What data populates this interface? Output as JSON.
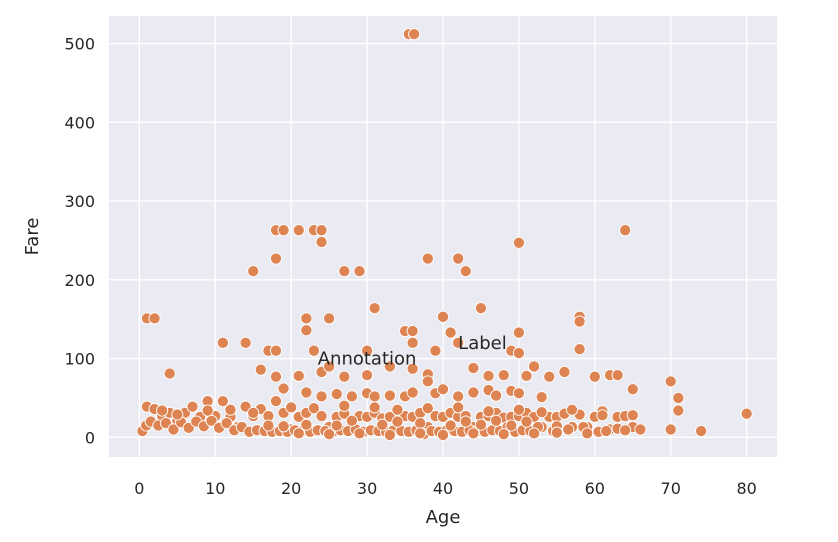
{
  "chart_data": {
    "type": "scatter",
    "title": "",
    "xlabel": "Age",
    "ylabel": "Fare",
    "xlim": [
      -4,
      84
    ],
    "ylim": [
      -25,
      535
    ],
    "xticks": [
      0,
      10,
      20,
      30,
      40,
      50,
      60,
      70,
      80
    ],
    "yticks": [
      0,
      100,
      200,
      300,
      400,
      500
    ],
    "grid": true,
    "background": "#eaeaf2",
    "point_color": "#dd8452",
    "annotations": [
      {
        "text": "Annotation",
        "x": 30,
        "y": 100
      },
      {
        "text": "Label",
        "x": 42,
        "y": 120
      }
    ],
    "points": [
      [
        35.5,
        512
      ],
      [
        36.2,
        512
      ],
      [
        18,
        263
      ],
      [
        19,
        263
      ],
      [
        21,
        263
      ],
      [
        23,
        263
      ],
      [
        24,
        263
      ],
      [
        64,
        263
      ],
      [
        24,
        248
      ],
      [
        50,
        247
      ],
      [
        18,
        227
      ],
      [
        38,
        227
      ],
      [
        42,
        227
      ],
      [
        15,
        211
      ],
      [
        27,
        211
      ],
      [
        29,
        211
      ],
      [
        43,
        211
      ],
      [
        31,
        164
      ],
      [
        45,
        164
      ],
      [
        1,
        151
      ],
      [
        2,
        151
      ],
      [
        22,
        151
      ],
      [
        25,
        151
      ],
      [
        40,
        153
      ],
      [
        58,
        153
      ],
      [
        58,
        147
      ],
      [
        22,
        136
      ],
      [
        35,
        135
      ],
      [
        36,
        135
      ],
      [
        41,
        133
      ],
      [
        50,
        133
      ],
      [
        11,
        120
      ],
      [
        14,
        120
      ],
      [
        36,
        120
      ],
      [
        42,
        120
      ],
      [
        17,
        110
      ],
      [
        18,
        110
      ],
      [
        23,
        110
      ],
      [
        30,
        110
      ],
      [
        39,
        110
      ],
      [
        49,
        110
      ],
      [
        50,
        107
      ],
      [
        58,
        112
      ],
      [
        4,
        81
      ],
      [
        24,
        83
      ],
      [
        16,
        86
      ],
      [
        25,
        90
      ],
      [
        27,
        77
      ],
      [
        30,
        79
      ],
      [
        33,
        90
      ],
      [
        36,
        87
      ],
      [
        38,
        80
      ],
      [
        44,
        88
      ],
      [
        46,
        78
      ],
      [
        48,
        79
      ],
      [
        51,
        78
      ],
      [
        52,
        90
      ],
      [
        56,
        83
      ],
      [
        60,
        77
      ],
      [
        62,
        79
      ],
      [
        63,
        79
      ],
      [
        65,
        61
      ],
      [
        70,
        71
      ],
      [
        71,
        50
      ],
      [
        71,
        34
      ],
      [
        18,
        77
      ],
      [
        19,
        62
      ],
      [
        21,
        78
      ],
      [
        22,
        57
      ],
      [
        24,
        52
      ],
      [
        26,
        55
      ],
      [
        28,
        52
      ],
      [
        30,
        56
      ],
      [
        31,
        52
      ],
      [
        33,
        53
      ],
      [
        35,
        52
      ],
      [
        36,
        57
      ],
      [
        38,
        71
      ],
      [
        39,
        56
      ],
      [
        40,
        61
      ],
      [
        42,
        52
      ],
      [
        44,
        57
      ],
      [
        46,
        60
      ],
      [
        47,
        53
      ],
      [
        49,
        59
      ],
      [
        50,
        56
      ],
      [
        53,
        51
      ],
      [
        54,
        77
      ],
      [
        58,
        29
      ],
      [
        61,
        33
      ],
      [
        1,
        39
      ],
      [
        2,
        36
      ],
      [
        3,
        27
      ],
      [
        4,
        31
      ],
      [
        5,
        21
      ],
      [
        6,
        31
      ],
      [
        7,
        39
      ],
      [
        8,
        26
      ],
      [
        9,
        46
      ],
      [
        10,
        27
      ],
      [
        11,
        46
      ],
      [
        12,
        26
      ],
      [
        13,
        13
      ],
      [
        14,
        39
      ],
      [
        15,
        27
      ],
      [
        16,
        36
      ],
      [
        17,
        27
      ],
      [
        18,
        46
      ],
      [
        19,
        31
      ],
      [
        20,
        10
      ],
      [
        21,
        26
      ],
      [
        22,
        31
      ],
      [
        23,
        8
      ],
      [
        24,
        27
      ],
      [
        25,
        13
      ],
      [
        26,
        26
      ],
      [
        27,
        30
      ],
      [
        28,
        16
      ],
      [
        29,
        27
      ],
      [
        30,
        26
      ],
      [
        31,
        31
      ],
      [
        32,
        24
      ],
      [
        33,
        26
      ],
      [
        34,
        13
      ],
      [
        35,
        27
      ],
      [
        36,
        26
      ],
      [
        37,
        31
      ],
      [
        38,
        13
      ],
      [
        39,
        27
      ],
      [
        40,
        26
      ],
      [
        41,
        31
      ],
      [
        42,
        26
      ],
      [
        43,
        27
      ],
      [
        44,
        13
      ],
      [
        45,
        26
      ],
      [
        46,
        27
      ],
      [
        47,
        31
      ],
      [
        48,
        25
      ],
      [
        49,
        26
      ],
      [
        50,
        27
      ],
      [
        51,
        31
      ],
      [
        52,
        26
      ],
      [
        53,
        13
      ],
      [
        54,
        26
      ],
      [
        55,
        26
      ],
      [
        56,
        30
      ],
      [
        57,
        13
      ],
      [
        59,
        13
      ],
      [
        60,
        26
      ],
      [
        62,
        10
      ],
      [
        63,
        26
      ],
      [
        64,
        27
      ],
      [
        65,
        13
      ],
      [
        66,
        10
      ],
      [
        0.4,
        8
      ],
      [
        0.9,
        15
      ],
      [
        1.5,
        20
      ],
      [
        2.5,
        15
      ],
      [
        3.5,
        18
      ],
      [
        4.5,
        10
      ],
      [
        5.5,
        19
      ],
      [
        6.5,
        12
      ],
      [
        7.5,
        20
      ],
      [
        8.5,
        14
      ],
      [
        9.5,
        21
      ],
      [
        10.5,
        12
      ],
      [
        11.5,
        18
      ],
      [
        12.5,
        9
      ],
      [
        13.5,
        13
      ],
      [
        14.5,
        7
      ],
      [
        15.5,
        9
      ],
      [
        16.5,
        8
      ],
      [
        17.5,
        7
      ],
      [
        18.5,
        8
      ],
      [
        19.5,
        7
      ],
      [
        20.5,
        9
      ],
      [
        21.5,
        8
      ],
      [
        22.5,
        7
      ],
      [
        23.5,
        9
      ],
      [
        24.5,
        8
      ],
      [
        25.5,
        7
      ],
      [
        26.5,
        9
      ],
      [
        27.5,
        8
      ],
      [
        28.5,
        10
      ],
      [
        29.5,
        7
      ],
      [
        30.5,
        9
      ],
      [
        31.5,
        8
      ],
      [
        32.5,
        7
      ],
      [
        33.5,
        9
      ],
      [
        34.5,
        8
      ],
      [
        35.5,
        7
      ],
      [
        36.5,
        9
      ],
      [
        37.5,
        4
      ],
      [
        38.5,
        8
      ],
      [
        39.5,
        7
      ],
      [
        40.5,
        9
      ],
      [
        41.5,
        8
      ],
      [
        42.5,
        7
      ],
      [
        43.5,
        9
      ],
      [
        44.5,
        8
      ],
      [
        45.5,
        7
      ],
      [
        46.5,
        9
      ],
      [
        47.5,
        8
      ],
      [
        48.5,
        13
      ],
      [
        49.5,
        7
      ],
      [
        50.5,
        9
      ],
      [
        51.5,
        8
      ],
      [
        52.5,
        13
      ],
      [
        54.5,
        8
      ],
      [
        56.5,
        10
      ],
      [
        58.5,
        13
      ],
      [
        60.5,
        7
      ],
      [
        61.5,
        8
      ],
      [
        70,
        10
      ],
      [
        74,
        8
      ],
      [
        80,
        30
      ],
      [
        17,
        15
      ],
      [
        19,
        14
      ],
      [
        22,
        16
      ],
      [
        26,
        15
      ],
      [
        28,
        21
      ],
      [
        32,
        16
      ],
      [
        34,
        20
      ],
      [
        37,
        18
      ],
      [
        41,
        15
      ],
      [
        43,
        20
      ],
      [
        45,
        16
      ],
      [
        47,
        21
      ],
      [
        49,
        15
      ],
      [
        51,
        20
      ],
      [
        55,
        14
      ],
      [
        3,
        34
      ],
      [
        5,
        29
      ],
      [
        9,
        34
      ],
      [
        12,
        35
      ],
      [
        15,
        31
      ],
      [
        20,
        38
      ],
      [
        23,
        37
      ],
      [
        27,
        40
      ],
      [
        31,
        38
      ],
      [
        34,
        35
      ],
      [
        38,
        37
      ],
      [
        42,
        38
      ],
      [
        46,
        33
      ],
      [
        50,
        35
      ],
      [
        53,
        32
      ],
      [
        57,
        35
      ],
      [
        21,
        5
      ],
      [
        25,
        4
      ],
      [
        29,
        5
      ],
      [
        33,
        3
      ],
      [
        37,
        5
      ],
      [
        40,
        3
      ],
      [
        44,
        5
      ],
      [
        48,
        4
      ],
      [
        52,
        5
      ],
      [
        55,
        6
      ],
      [
        59,
        5
      ],
      [
        61,
        28
      ],
      [
        63,
        11
      ],
      [
        65,
        28
      ],
      [
        64,
        9
      ]
    ]
  }
}
